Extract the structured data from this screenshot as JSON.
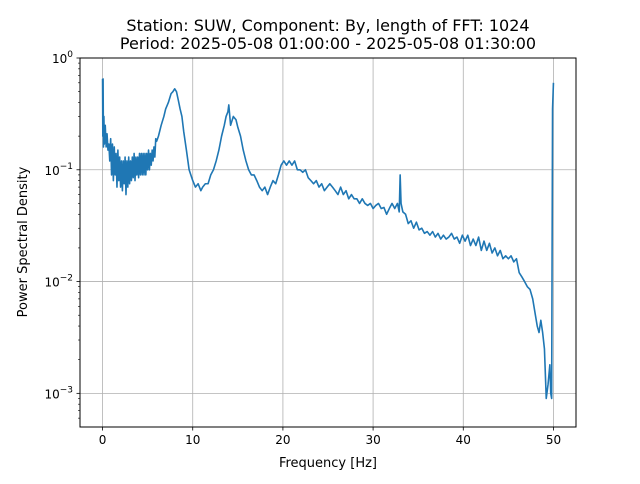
{
  "chart_data": {
    "type": "line",
    "title": "Station: SUW, Component: By, length of FFT: 1024",
    "subtitle": "Period: 2025-05-08 01:00:00 - 2025-05-08 01:30:00",
    "xlabel": "Frequency [Hz]",
    "ylabel": "Power Spectral Density",
    "xlim": [
      -2.5,
      52.5
    ],
    "ylim": [
      0.0005,
      1
    ],
    "yscale": "log",
    "grid": true,
    "x_ticks": [
      0,
      10,
      20,
      30,
      40,
      50
    ],
    "x_tick_labels": [
      "0",
      "10",
      "20",
      "30",
      "40",
      "50"
    ],
    "y_ticks": [
      0.001,
      0.01,
      0.1,
      1
    ],
    "y_tick_labels": [
      {
        "base": "10",
        "exp": "−3"
      },
      {
        "base": "10",
        "exp": "−2"
      },
      {
        "base": "10",
        "exp": "−1"
      },
      {
        "base": "10",
        "exp": "0"
      }
    ],
    "series": [
      {
        "color": "#1f77b4",
        "x": [
          0,
          0.03,
          0.06,
          0.1,
          0.15,
          0.2,
          0.3,
          0.4,
          0.5,
          0.6,
          0.7,
          0.8,
          0.9,
          1.0,
          1.1,
          1.2,
          1.3,
          1.4,
          1.5,
          1.6,
          1.7,
          1.8,
          1.9,
          2.0,
          2.1,
          2.2,
          2.3,
          2.4,
          2.5,
          2.6,
          2.7,
          2.8,
          2.9,
          3.0,
          3.1,
          3.2,
          3.3,
          3.4,
          3.5,
          3.6,
          3.7,
          3.8,
          3.9,
          4.0,
          4.1,
          4.2,
          4.3,
          4.4,
          4.5,
          4.6,
          4.7,
          4.8,
          4.9,
          5.0,
          5.1,
          5.2,
          5.3,
          5.4,
          5.5,
          5.6,
          5.7,
          5.8,
          5.9,
          6.0,
          6.2,
          6.5,
          6.8,
          7.0,
          7.3,
          7.6,
          7.8,
          8.0,
          8.2,
          8.4,
          8.6,
          8.8,
          9.0,
          9.3,
          9.6,
          10.0,
          10.3,
          10.6,
          10.9,
          11.1,
          11.4,
          11.7,
          12.0,
          12.3,
          12.6,
          12.9,
          13.2,
          13.5,
          13.7,
          13.9,
          14.0,
          14.2,
          14.5,
          14.8,
          15.0,
          15.3,
          15.6,
          15.9,
          16.2,
          16.5,
          16.8,
          17.1,
          17.4,
          17.7,
          18.0,
          18.3,
          18.6,
          18.9,
          19.2,
          19.5,
          19.8,
          20.1,
          20.4,
          20.7,
          21.0,
          21.3,
          21.6,
          21.9,
          22.2,
          22.5,
          22.8,
          23.1,
          23.4,
          23.7,
          24.0,
          24.3,
          24.6,
          24.9,
          25.2,
          25.5,
          25.8,
          26.1,
          26.4,
          26.7,
          27.0,
          27.3,
          27.6,
          27.9,
          28.2,
          28.5,
          28.8,
          29.1,
          29.4,
          29.7,
          30.0,
          30.3,
          30.6,
          30.9,
          31.2,
          31.5,
          31.8,
          32.1,
          32.4,
          32.7,
          32.9,
          33.0,
          33.1,
          33.3,
          33.6,
          33.9,
          34.2,
          34.5,
          34.8,
          35.1,
          35.4,
          35.7,
          36.0,
          36.3,
          36.6,
          36.9,
          37.2,
          37.5,
          37.8,
          38.1,
          38.4,
          38.7,
          39.0,
          39.3,
          39.6,
          39.9,
          40.2,
          40.5,
          40.8,
          41.1,
          41.4,
          41.7,
          42.0,
          42.3,
          42.6,
          42.9,
          43.2,
          43.5,
          43.8,
          44.1,
          44.4,
          44.7,
          45.0,
          45.3,
          45.6,
          45.9,
          46.2,
          46.5,
          46.8,
          47.1,
          47.4,
          47.7,
          48.0,
          48.2,
          48.4,
          48.6,
          48.8,
          49.0,
          49.1,
          49.2,
          49.4,
          49.6,
          49.7,
          49.8,
          49.9,
          50.0
        ],
        "y": [
          0.65,
          0.2,
          0.65,
          0.16,
          0.3,
          0.17,
          0.25,
          0.16,
          0.21,
          0.15,
          0.17,
          0.12,
          0.19,
          0.09,
          0.17,
          0.08,
          0.16,
          0.09,
          0.14,
          0.07,
          0.15,
          0.08,
          0.13,
          0.07,
          0.12,
          0.065,
          0.12,
          0.075,
          0.13,
          0.06,
          0.12,
          0.07,
          0.13,
          0.075,
          0.12,
          0.08,
          0.13,
          0.085,
          0.14,
          0.08,
          0.13,
          0.09,
          0.13,
          0.085,
          0.14,
          0.09,
          0.14,
          0.09,
          0.14,
          0.09,
          0.14,
          0.09,
          0.14,
          0.1,
          0.15,
          0.1,
          0.14,
          0.11,
          0.15,
          0.12,
          0.16,
          0.13,
          0.19,
          0.18,
          0.2,
          0.25,
          0.3,
          0.35,
          0.4,
          0.48,
          0.5,
          0.53,
          0.5,
          0.42,
          0.35,
          0.3,
          0.22,
          0.15,
          0.1,
          0.08,
          0.07,
          0.075,
          0.065,
          0.07,
          0.075,
          0.075,
          0.09,
          0.1,
          0.12,
          0.15,
          0.2,
          0.25,
          0.3,
          0.33,
          0.38,
          0.25,
          0.3,
          0.28,
          0.24,
          0.2,
          0.15,
          0.12,
          0.1,
          0.09,
          0.09,
          0.08,
          0.07,
          0.065,
          0.07,
          0.06,
          0.07,
          0.08,
          0.075,
          0.09,
          0.11,
          0.12,
          0.11,
          0.12,
          0.11,
          0.12,
          0.1,
          0.1,
          0.095,
          0.1,
          0.085,
          0.08,
          0.075,
          0.08,
          0.07,
          0.075,
          0.065,
          0.07,
          0.075,
          0.07,
          0.065,
          0.06,
          0.07,
          0.06,
          0.065,
          0.055,
          0.06,
          0.055,
          0.055,
          0.05,
          0.055,
          0.05,
          0.048,
          0.05,
          0.045,
          0.048,
          0.05,
          0.045,
          0.046,
          0.04,
          0.045,
          0.05,
          0.045,
          0.05,
          0.042,
          0.09,
          0.05,
          0.042,
          0.04,
          0.033,
          0.035,
          0.03,
          0.034,
          0.029,
          0.03,
          0.027,
          0.028,
          0.026,
          0.028,
          0.025,
          0.027,
          0.024,
          0.026,
          0.024,
          0.025,
          0.027,
          0.024,
          0.025,
          0.022,
          0.026,
          0.023,
          0.026,
          0.021,
          0.024,
          0.021,
          0.025,
          0.019,
          0.023,
          0.019,
          0.022,
          0.018,
          0.02,
          0.017,
          0.019,
          0.016,
          0.017,
          0.016,
          0.017,
          0.015,
          0.016,
          0.012,
          0.011,
          0.01,
          0.009,
          0.0085,
          0.007,
          0.005,
          0.004,
          0.0035,
          0.0045,
          0.0035,
          0.0025,
          0.0015,
          0.0009,
          0.0012,
          0.0018,
          0.001,
          0.0009,
          0.35,
          0.6
        ]
      }
    ]
  }
}
